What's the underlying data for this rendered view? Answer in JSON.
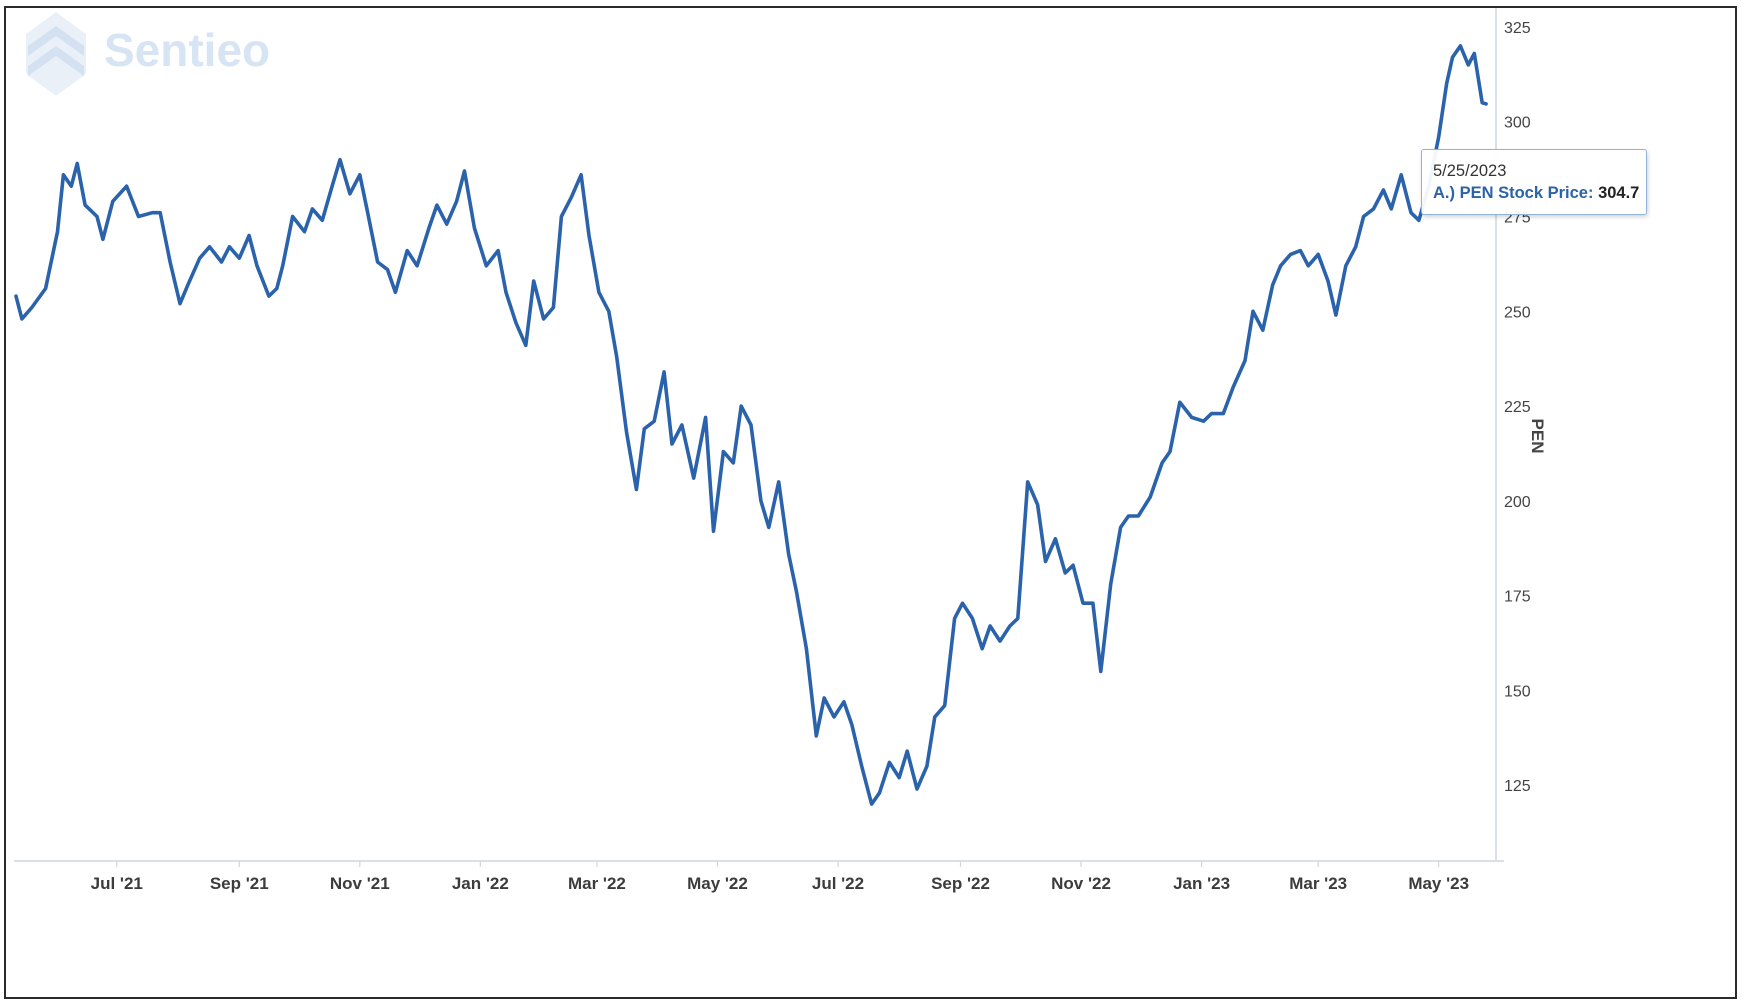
{
  "brand": {
    "logo_text": "Sentieo",
    "logo_icon": "sentieo-logo-icon"
  },
  "tooltip": {
    "date": "5/25/2023",
    "series_label": "A.) PEN Stock Price:",
    "value": "304.7"
  },
  "colors": {
    "line": "#2a63ab",
    "logo": "#d6e4f3",
    "axis": "#cfd6df",
    "tooltip_border": "#8fb3d9"
  },
  "chart_data": {
    "type": "line",
    "title": "",
    "xlabel": "",
    "ylabel": "PEN",
    "y_axis_position": "right",
    "ylim": [
      105,
      330
    ],
    "y_ticks": [
      125,
      150,
      175,
      200,
      225,
      250,
      275,
      300,
      325
    ],
    "x_range": [
      "2021-05-10",
      "2023-05-30"
    ],
    "x_ticks": [
      {
        "date": "2021-07-01",
        "label": "Jul '21"
      },
      {
        "date": "2021-09-01",
        "label": "Sep '21"
      },
      {
        "date": "2021-11-01",
        "label": "Nov '21"
      },
      {
        "date": "2022-01-01",
        "label": "Jan '22"
      },
      {
        "date": "2022-03-01",
        "label": "Mar '22"
      },
      {
        "date": "2022-05-01",
        "label": "May '22"
      },
      {
        "date": "2022-07-01",
        "label": "Jul '22"
      },
      {
        "date": "2022-09-01",
        "label": "Sep '22"
      },
      {
        "date": "2022-11-01",
        "label": "Nov '22"
      },
      {
        "date": "2023-01-01",
        "label": "Jan '23"
      },
      {
        "date": "2023-03-01",
        "label": "Mar '23"
      },
      {
        "date": "2023-05-01",
        "label": "May '23"
      }
    ],
    "grid": false,
    "legend": "none",
    "series": [
      {
        "name": "A.) PEN Stock Price",
        "points": [
          [
            "2021-05-11",
            254
          ],
          [
            "2021-05-14",
            248
          ],
          [
            "2021-05-19",
            251
          ],
          [
            "2021-05-26",
            256
          ],
          [
            "2021-06-01",
            271
          ],
          [
            "2021-06-04",
            286
          ],
          [
            "2021-06-08",
            283
          ],
          [
            "2021-06-11",
            289
          ],
          [
            "2021-06-15",
            278
          ],
          [
            "2021-06-21",
            275
          ],
          [
            "2021-06-24",
            269
          ],
          [
            "2021-06-29",
            279
          ],
          [
            "2021-07-06",
            283
          ],
          [
            "2021-07-12",
            275
          ],
          [
            "2021-07-19",
            276
          ],
          [
            "2021-07-23",
            276
          ],
          [
            "2021-07-28",
            263
          ],
          [
            "2021-08-02",
            252
          ],
          [
            "2021-08-06",
            257
          ],
          [
            "2021-08-12",
            264
          ],
          [
            "2021-08-17",
            267
          ],
          [
            "2021-08-23",
            263
          ],
          [
            "2021-08-27",
            267
          ],
          [
            "2021-09-01",
            264
          ],
          [
            "2021-09-06",
            270
          ],
          [
            "2021-09-10",
            262
          ],
          [
            "2021-09-16",
            254
          ],
          [
            "2021-09-20",
            256
          ],
          [
            "2021-09-23",
            262
          ],
          [
            "2021-09-28",
            275
          ],
          [
            "2021-10-04",
            271
          ],
          [
            "2021-10-08",
            277
          ],
          [
            "2021-10-13",
            274
          ],
          [
            "2021-10-18",
            283
          ],
          [
            "2021-10-22",
            290
          ],
          [
            "2021-10-27",
            281
          ],
          [
            "2021-11-01",
            286
          ],
          [
            "2021-11-05",
            276
          ],
          [
            "2021-11-10",
            263
          ],
          [
            "2021-11-15",
            261
          ],
          [
            "2021-11-19",
            255
          ],
          [
            "2021-11-25",
            266
          ],
          [
            "2021-11-30",
            262
          ],
          [
            "2021-12-06",
            272
          ],
          [
            "2021-12-10",
            278
          ],
          [
            "2021-12-15",
            273
          ],
          [
            "2021-12-20",
            279
          ],
          [
            "2021-12-24",
            287
          ],
          [
            "2021-12-29",
            272
          ],
          [
            "2022-01-04",
            262
          ],
          [
            "2022-01-10",
            266
          ],
          [
            "2022-01-14",
            255
          ],
          [
            "2022-01-19",
            247
          ],
          [
            "2022-01-24",
            241
          ],
          [
            "2022-01-28",
            258
          ],
          [
            "2022-02-02",
            248
          ],
          [
            "2022-02-07",
            251
          ],
          [
            "2022-02-11",
            275
          ],
          [
            "2022-02-16",
            280
          ],
          [
            "2022-02-21",
            286
          ],
          [
            "2022-02-25",
            270
          ],
          [
            "2022-03-02",
            255
          ],
          [
            "2022-03-07",
            250
          ],
          [
            "2022-03-11",
            238
          ],
          [
            "2022-03-16",
            218
          ],
          [
            "2022-03-21",
            203
          ],
          [
            "2022-03-25",
            219
          ],
          [
            "2022-03-30",
            221
          ],
          [
            "2022-04-04",
            234
          ],
          [
            "2022-04-08",
            215
          ],
          [
            "2022-04-13",
            220
          ],
          [
            "2022-04-19",
            206
          ],
          [
            "2022-04-25",
            222
          ],
          [
            "2022-04-29",
            192
          ],
          [
            "2022-05-04",
            213
          ],
          [
            "2022-05-09",
            210
          ],
          [
            "2022-05-13",
            225
          ],
          [
            "2022-05-18",
            220
          ],
          [
            "2022-05-23",
            200
          ],
          [
            "2022-05-27",
            193
          ],
          [
            "2022-06-01",
            205
          ],
          [
            "2022-06-06",
            186
          ],
          [
            "2022-06-10",
            176
          ],
          [
            "2022-06-15",
            161
          ],
          [
            "2022-06-20",
            138
          ],
          [
            "2022-06-24",
            148
          ],
          [
            "2022-06-29",
            143
          ],
          [
            "2022-07-04",
            147
          ],
          [
            "2022-07-08",
            141
          ],
          [
            "2022-07-13",
            130
          ],
          [
            "2022-07-18",
            120
          ],
          [
            "2022-07-22",
            123
          ],
          [
            "2022-07-27",
            131
          ],
          [
            "2022-08-01",
            127
          ],
          [
            "2022-08-05",
            134
          ],
          [
            "2022-08-10",
            124
          ],
          [
            "2022-08-15",
            130
          ],
          [
            "2022-08-19",
            143
          ],
          [
            "2022-08-24",
            146
          ],
          [
            "2022-08-29",
            169
          ],
          [
            "2022-09-02",
            173
          ],
          [
            "2022-09-07",
            169
          ],
          [
            "2022-09-12",
            161
          ],
          [
            "2022-09-16",
            167
          ],
          [
            "2022-09-21",
            163
          ],
          [
            "2022-09-26",
            167
          ],
          [
            "2022-09-30",
            169
          ],
          [
            "2022-10-05",
            205
          ],
          [
            "2022-10-10",
            199
          ],
          [
            "2022-10-14",
            184
          ],
          [
            "2022-10-19",
            190
          ],
          [
            "2022-10-24",
            181
          ],
          [
            "2022-10-28",
            183
          ],
          [
            "2022-11-02",
            173
          ],
          [
            "2022-11-07",
            173
          ],
          [
            "2022-11-11",
            155
          ],
          [
            "2022-11-16",
            178
          ],
          [
            "2022-11-21",
            193
          ],
          [
            "2022-11-25",
            196
          ],
          [
            "2022-11-30",
            196
          ],
          [
            "2022-12-06",
            201
          ],
          [
            "2022-12-12",
            210
          ],
          [
            "2022-12-16",
            213
          ],
          [
            "2022-12-21",
            226
          ],
          [
            "2022-12-27",
            222
          ],
          [
            "2023-01-02",
            221
          ],
          [
            "2023-01-06",
            223
          ],
          [
            "2023-01-12",
            223
          ],
          [
            "2023-01-17",
            230
          ],
          [
            "2023-01-23",
            237
          ],
          [
            "2023-01-27",
            250
          ],
          [
            "2023-02-01",
            245
          ],
          [
            "2023-02-06",
            257
          ],
          [
            "2023-02-10",
            262
          ],
          [
            "2023-02-15",
            265
          ],
          [
            "2023-02-20",
            266
          ],
          [
            "2023-02-24",
            262
          ],
          [
            "2023-03-01",
            265
          ],
          [
            "2023-03-06",
            258
          ],
          [
            "2023-03-10",
            249
          ],
          [
            "2023-03-15",
            262
          ],
          [
            "2023-03-20",
            267
          ],
          [
            "2023-03-24",
            275
          ],
          [
            "2023-03-29",
            277
          ],
          [
            "2023-04-03",
            282
          ],
          [
            "2023-04-07",
            277
          ],
          [
            "2023-04-12",
            286
          ],
          [
            "2023-04-17",
            276
          ],
          [
            "2023-04-21",
            274
          ],
          [
            "2023-04-26",
            283
          ],
          [
            "2023-05-01",
            296
          ],
          [
            "2023-05-05",
            310
          ],
          [
            "2023-05-08",
            317
          ],
          [
            "2023-05-12",
            320
          ],
          [
            "2023-05-16",
            315
          ],
          [
            "2023-05-19",
            318
          ],
          [
            "2023-05-23",
            305
          ],
          [
            "2023-05-25",
            304.7
          ]
        ]
      }
    ]
  }
}
